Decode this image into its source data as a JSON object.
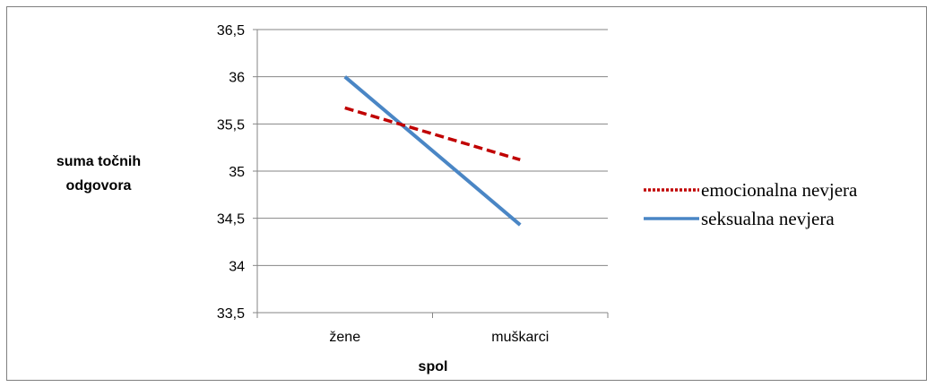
{
  "chart_data": {
    "type": "line",
    "categories": [
      "žene",
      "muškarci"
    ],
    "series": [
      {
        "name": "emocionalna nevjera",
        "values": [
          35.67,
          35.12
        ],
        "color": "#c00000",
        "dash": "dashed"
      },
      {
        "name": "seksualna nevjera",
        "values": [
          36.0,
          34.43
        ],
        "color": "#4a86c5",
        "dash": "solid"
      }
    ],
    "xlabel": "spol",
    "ylabel": [
      "suma točnih",
      "odgovora"
    ],
    "ylim": [
      33.5,
      36.5
    ],
    "yticks": [
      "33,5",
      "34",
      "34,5",
      "35",
      "35,5",
      "36",
      "36,5"
    ],
    "grid": true,
    "legend": "right"
  }
}
